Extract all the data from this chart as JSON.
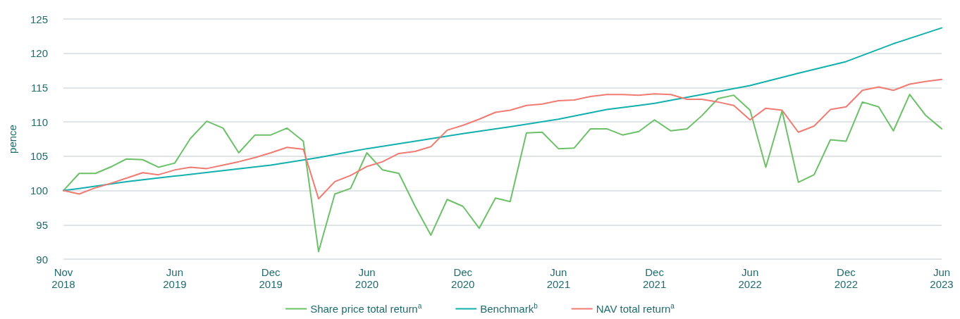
{
  "chart_data": {
    "type": "line",
    "ylabel": "pence",
    "x": [
      "2018-11",
      "2018-12",
      "2019-01",
      "2019-02",
      "2019-03",
      "2019-04",
      "2019-05",
      "2019-06",
      "2019-07",
      "2019-08",
      "2019-09",
      "2019-10",
      "2019-11",
      "2019-12",
      "2020-01",
      "2020-02",
      "2020-03",
      "2020-04",
      "2020-05",
      "2020-06",
      "2020-07",
      "2020-08",
      "2020-09",
      "2020-10",
      "2020-11",
      "2020-12",
      "2021-01",
      "2021-02",
      "2021-03",
      "2021-04",
      "2021-05",
      "2021-06",
      "2021-07",
      "2021-08",
      "2021-09",
      "2021-10",
      "2021-11",
      "2021-12",
      "2022-01",
      "2022-02",
      "2022-03",
      "2022-04",
      "2022-05",
      "2022-06",
      "2022-07",
      "2022-08",
      "2022-09",
      "2022-10",
      "2022-11",
      "2022-12",
      "2023-01",
      "2023-02",
      "2023-03",
      "2023-04",
      "2023-05",
      "2023-06"
    ],
    "series": [
      {
        "name": "Share price total return$^{a}$",
        "color": "#6cc168",
        "values": [
          100,
          102.5,
          102.5,
          103.5,
          104.6,
          104.5,
          103.4,
          104.0,
          107.6,
          110.1,
          109.1,
          105.5,
          108.1,
          108.1,
          109.1,
          107.2,
          91.1,
          99.5,
          100.3,
          105.5,
          103.0,
          102.5,
          97.7,
          93.5,
          98.7,
          97.7,
          94.5,
          98.9,
          98.4,
          108.4,
          108.5,
          106.1,
          106.2,
          109.0,
          109.0,
          108.1,
          108.6,
          110.3,
          108.7,
          109.0,
          110.9,
          113.4,
          113.9,
          111.7,
          103.4,
          111.6,
          101.2,
          102.3,
          107.4,
          107.2,
          112.9,
          112.2,
          108.7,
          114.0,
          111.0,
          109.0
        ]
      },
      {
        "name": "Benchmark$^{b}$",
        "color": "#12b0ad",
        "x": [
          "2018-11",
          "2018-12",
          "2019-03",
          "2019-06",
          "2019-09",
          "2019-12",
          "2020-03",
          "2020-06",
          "2020-09",
          "2020-12",
          "2021-03",
          "2021-06",
          "2021-09",
          "2021-11",
          "2021-12",
          "2022-03",
          "2022-06",
          "2022-09",
          "2022-12",
          "2023-03",
          "2023-06"
        ],
        "values": [
          100,
          100.3,
          101.3,
          102.1,
          102.9,
          103.7,
          104.8,
          106.1,
          107.2,
          108.3,
          109.3,
          110.4,
          111.8,
          112.4,
          112.7,
          114.0,
          115.3,
          117.1,
          118.8,
          121.4,
          123.7
        ]
      },
      {
        "name": "NAV total return$^{a}$",
        "color": "#ef7b72",
        "values": [
          100,
          99.5,
          100.4,
          101.1,
          101.8,
          102.6,
          102.3,
          103.0,
          103.4,
          103.2,
          103.7,
          104.2,
          104.8,
          105.5,
          106.3,
          106.0,
          98.8,
          101.3,
          102.2,
          103.5,
          104.2,
          105.4,
          105.7,
          106.4,
          108.8,
          109.5,
          110.4,
          111.4,
          111.7,
          112.4,
          112.6,
          113.1,
          113.2,
          113.7,
          114.0,
          114.0,
          113.9,
          114.1,
          114.0,
          113.3,
          113.3,
          112.9,
          112.4,
          110.3,
          112.0,
          111.7,
          108.5,
          109.4,
          111.8,
          112.2,
          114.6,
          115.1,
          114.6,
          115.5,
          115.9,
          116.2
        ]
      }
    ],
    "xlim": [
      "2018-11",
      "2023-06"
    ],
    "xticks": [
      {
        "value": "2018-11",
        "label": "Nov 2018"
      },
      {
        "value": "2019-06",
        "label": "Jun 2019"
      },
      {
        "value": "2019-12",
        "label": "Dec 2019"
      },
      {
        "value": "2020-06",
        "label": "Jun 2020"
      },
      {
        "value": "2020-12",
        "label": "Dec 2020"
      },
      {
        "value": "2021-06",
        "label": "Jun 2021"
      },
      {
        "value": "2021-12",
        "label": "Dec 2021"
      },
      {
        "value": "2022-06",
        "label": "Jun 2022"
      },
      {
        "value": "2022-12",
        "label": "Dec 2022"
      },
      {
        "value": "2023-06",
        "label": "Jun 2023"
      }
    ],
    "ylim": [
      90,
      125
    ],
    "yticks": [
      90,
      95,
      100,
      105,
      110,
      115,
      120,
      125
    ],
    "grid": "y",
    "legend": "bottom",
    "marker": "none",
    "line_style": "solid"
  }
}
